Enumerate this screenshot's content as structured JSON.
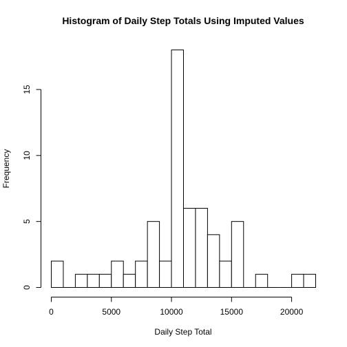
{
  "chart_data": {
    "type": "bar",
    "subtype": "histogram",
    "title": "Histogram of Daily Step Totals Using Imputed Values",
    "xlabel": "Daily Step Total",
    "ylabel": "Frequency",
    "bin_width": 1000,
    "bins": [
      {
        "start": 0,
        "end": 1000,
        "count": 2
      },
      {
        "start": 1000,
        "end": 2000,
        "count": 0
      },
      {
        "start": 2000,
        "end": 3000,
        "count": 1
      },
      {
        "start": 3000,
        "end": 4000,
        "count": 1
      },
      {
        "start": 4000,
        "end": 5000,
        "count": 1
      },
      {
        "start": 5000,
        "end": 6000,
        "count": 2
      },
      {
        "start": 6000,
        "end": 7000,
        "count": 1
      },
      {
        "start": 7000,
        "end": 8000,
        "count": 2
      },
      {
        "start": 8000,
        "end": 9000,
        "count": 5
      },
      {
        "start": 9000,
        "end": 10000,
        "count": 2
      },
      {
        "start": 10000,
        "end": 11000,
        "count": 18
      },
      {
        "start": 11000,
        "end": 12000,
        "count": 6
      },
      {
        "start": 12000,
        "end": 13000,
        "count": 6
      },
      {
        "start": 13000,
        "end": 14000,
        "count": 4
      },
      {
        "start": 14000,
        "end": 15000,
        "count": 2
      },
      {
        "start": 15000,
        "end": 16000,
        "count": 5
      },
      {
        "start": 16000,
        "end": 17000,
        "count": 0
      },
      {
        "start": 17000,
        "end": 18000,
        "count": 1
      },
      {
        "start": 18000,
        "end": 19000,
        "count": 0
      },
      {
        "start": 19000,
        "end": 20000,
        "count": 0
      },
      {
        "start": 20000,
        "end": 21000,
        "count": 1
      },
      {
        "start": 21000,
        "end": 22000,
        "count": 1
      }
    ],
    "xlim": [
      0,
      22000
    ],
    "ylim": [
      0,
      18
    ],
    "x_ticks": [
      0,
      5000,
      10000,
      15000,
      20000
    ],
    "x_tick_labels": [
      "0",
      "5000",
      "10000",
      "15000",
      "20000"
    ],
    "y_ticks": [
      0,
      5,
      10,
      15
    ],
    "y_tick_labels": [
      "0",
      "5",
      "10",
      "15"
    ],
    "grid": false,
    "legend": "none",
    "bar_fill": "#ffffff",
    "bar_stroke": "#000000"
  }
}
